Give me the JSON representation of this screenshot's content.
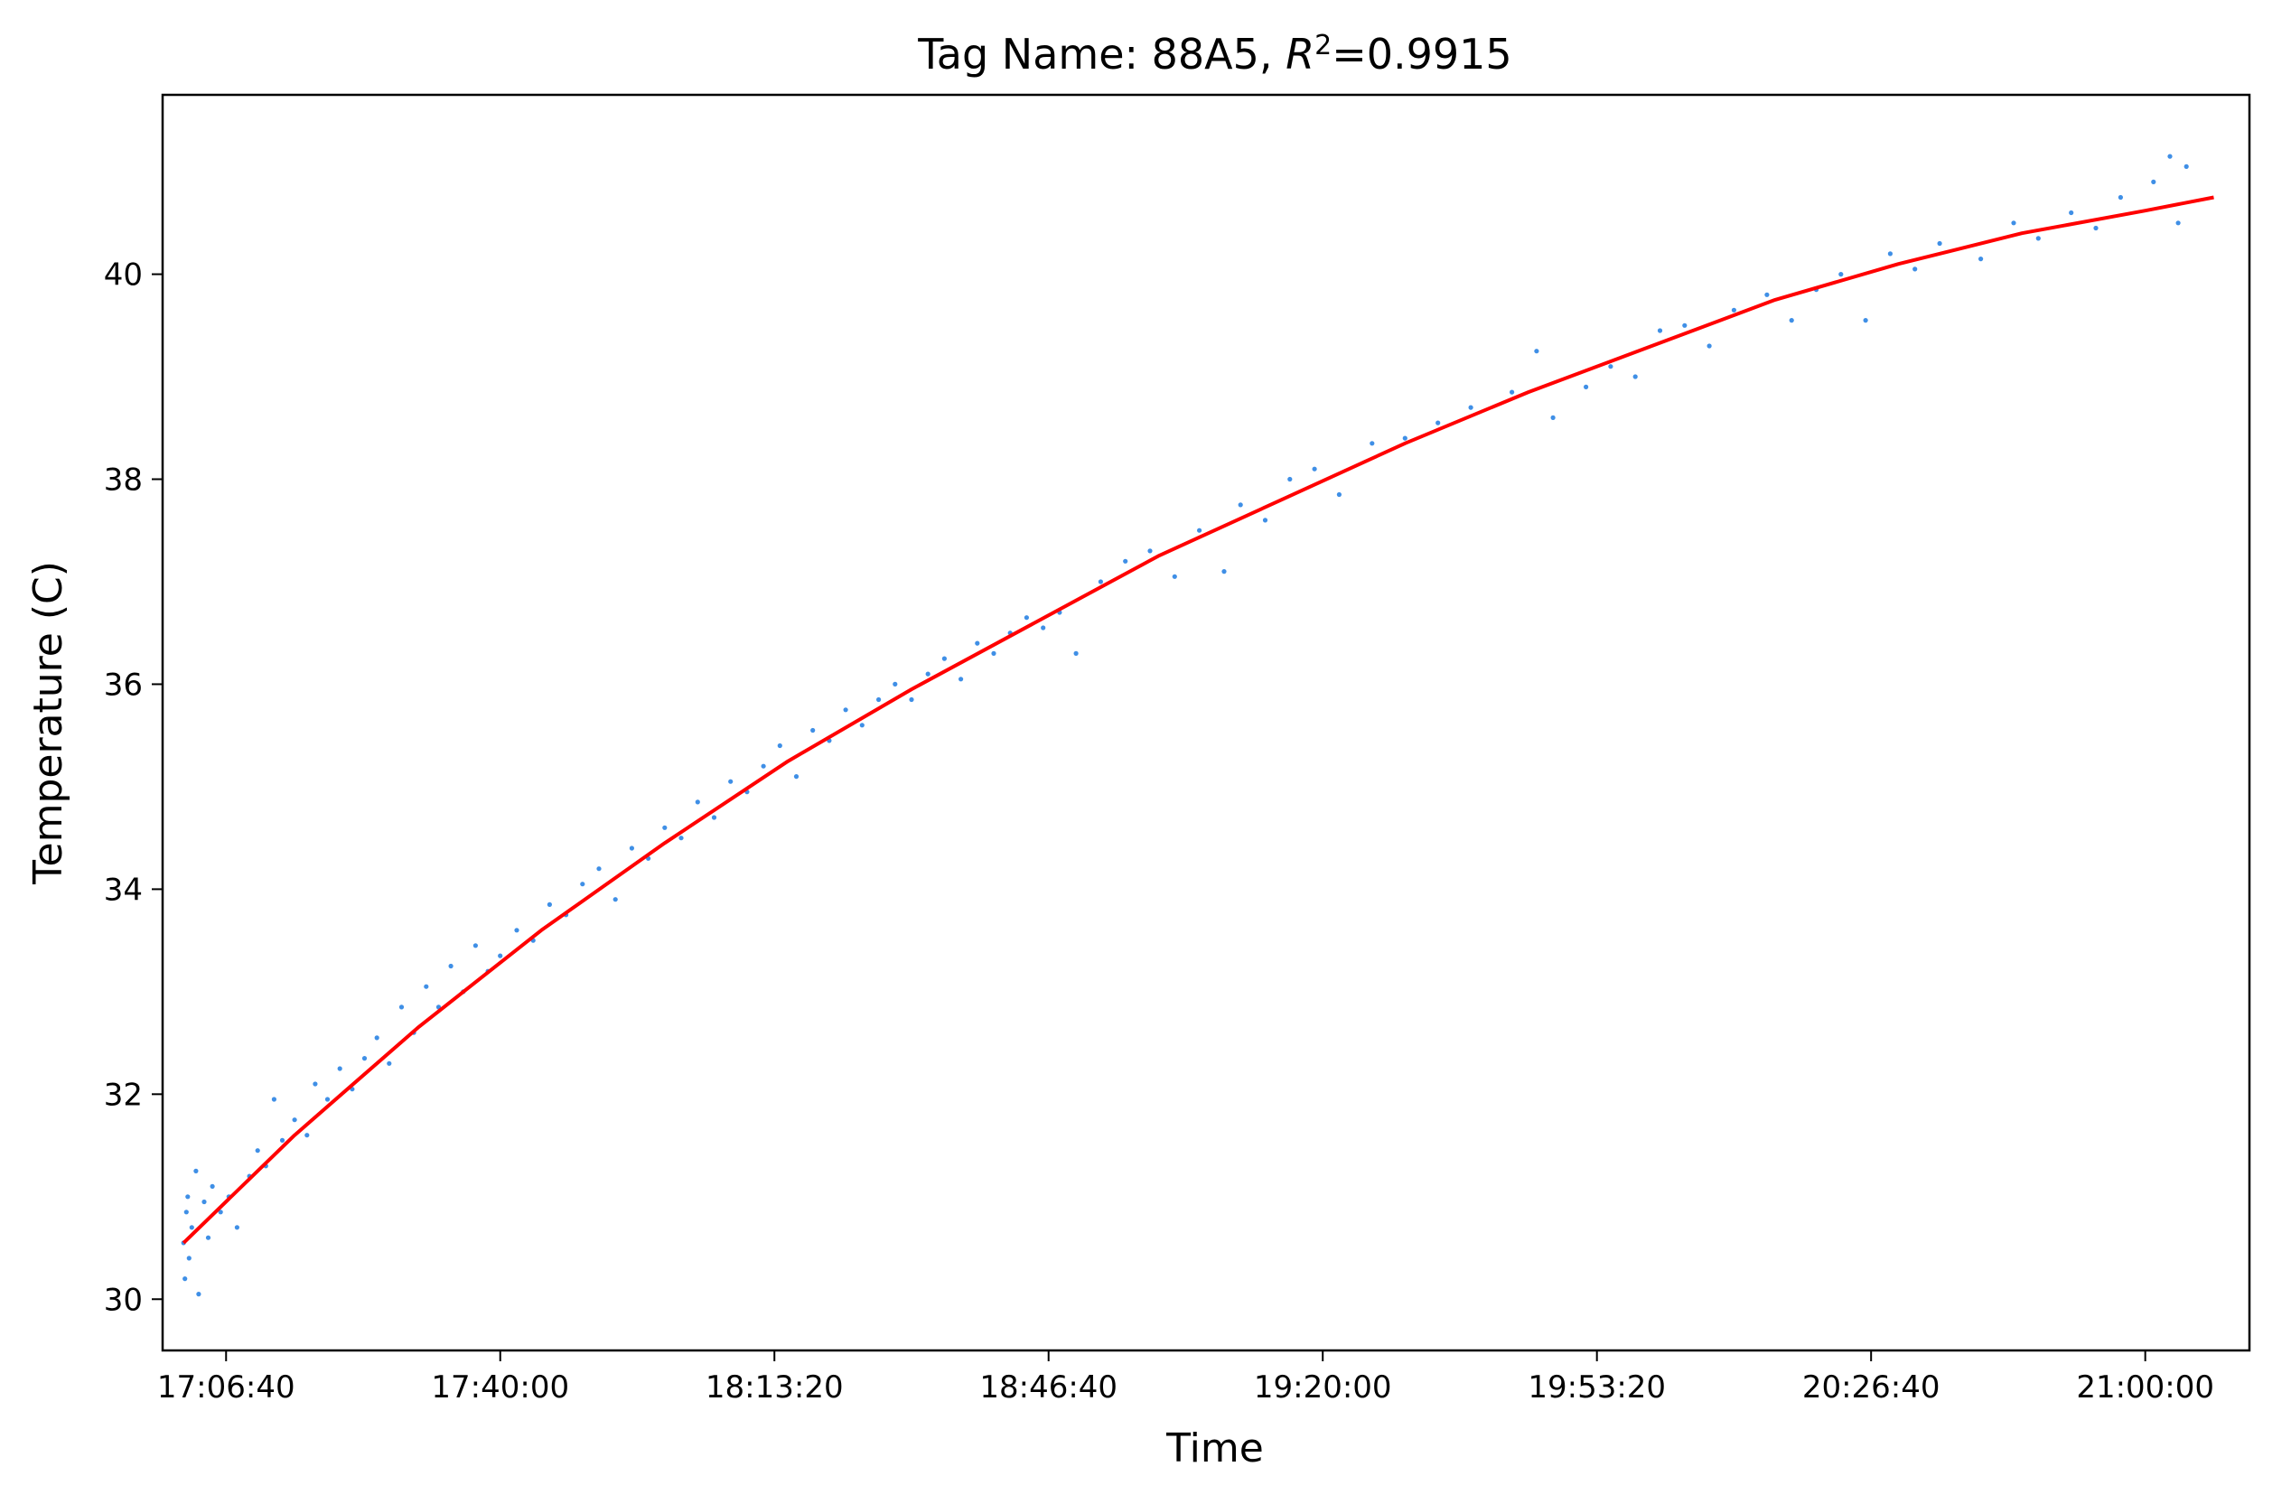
{
  "chart_data": {
    "type": "scatter",
    "title": "Tag Name: 88A5, R²=0.9915",
    "title_parts": {
      "prefix": "Tag Name: 88A5, ",
      "var": "R",
      "sup": "2",
      "suffix": "=0.9915"
    },
    "xlabel": "Time",
    "ylabel": "Temperature (C)",
    "x_range": [
      "16:58:57",
      "21:12:40"
    ],
    "xlim": [
      "16:58:57",
      "21:12:40"
    ],
    "ylim": [
      29.5,
      41.75
    ],
    "x_ticks": [
      "17:06:40",
      "17:40:00",
      "18:13:20",
      "18:46:40",
      "19:20:00",
      "19:53:20",
      "20:26:40",
      "21:00:00"
    ],
    "y_ticks": [
      30,
      32,
      34,
      36,
      38,
      40
    ],
    "grid": false,
    "legend": "none",
    "series": [
      {
        "kind": "scatter",
        "color": "#3f8fe6",
        "points": [
          [
            "17:01:30",
            30.55
          ],
          [
            "17:01:40",
            30.2
          ],
          [
            "17:01:50",
            30.85
          ],
          [
            "17:02:00",
            31.0
          ],
          [
            "17:02:10",
            30.4
          ],
          [
            "17:02:30",
            30.7
          ],
          [
            "17:03:00",
            31.25
          ],
          [
            "17:03:20",
            30.05
          ],
          [
            "17:04:00",
            30.95
          ],
          [
            "17:04:30",
            30.6
          ],
          [
            "17:05:00",
            31.1
          ],
          [
            "17:06:00",
            30.85
          ],
          [
            "17:07:00",
            31.0
          ],
          [
            "17:08:00",
            30.7
          ],
          [
            "17:09:30",
            31.2
          ],
          [
            "17:10:30",
            31.45
          ],
          [
            "17:11:30",
            31.3
          ],
          [
            "17:12:30",
            31.95
          ],
          [
            "17:13:30",
            31.55
          ],
          [
            "17:15:00",
            31.75
          ],
          [
            "17:16:30",
            31.6
          ],
          [
            "17:17:30",
            32.1
          ],
          [
            "17:19:00",
            31.95
          ],
          [
            "17:20:30",
            32.25
          ],
          [
            "17:22:00",
            32.05
          ],
          [
            "17:23:30",
            32.35
          ],
          [
            "17:25:00",
            32.55
          ],
          [
            "17:26:30",
            32.3
          ],
          [
            "17:28:00",
            32.85
          ],
          [
            "17:29:30",
            32.6
          ],
          [
            "17:31:00",
            33.05
          ],
          [
            "17:32:30",
            32.85
          ],
          [
            "17:34:00",
            33.25
          ],
          [
            "17:35:30",
            33.0
          ],
          [
            "17:37:00",
            33.45
          ],
          [
            "17:38:30",
            33.2
          ],
          [
            "17:40:00",
            33.35
          ],
          [
            "17:42:00",
            33.6
          ],
          [
            "17:44:00",
            33.5
          ],
          [
            "17:46:00",
            33.85
          ],
          [
            "17:48:00",
            33.75
          ],
          [
            "17:50:00",
            34.05
          ],
          [
            "17:52:00",
            34.2
          ],
          [
            "17:54:00",
            33.9
          ],
          [
            "17:56:00",
            34.4
          ],
          [
            "17:58:00",
            34.3
          ],
          [
            "18:00:00",
            34.6
          ],
          [
            "18:02:00",
            34.5
          ],
          [
            "18:04:00",
            34.85
          ],
          [
            "18:06:00",
            34.7
          ],
          [
            "18:08:00",
            35.05
          ],
          [
            "18:10:00",
            34.95
          ],
          [
            "18:12:00",
            35.2
          ],
          [
            "18:14:00",
            35.4
          ],
          [
            "18:16:00",
            35.1
          ],
          [
            "18:18:00",
            35.55
          ],
          [
            "18:20:00",
            35.45
          ],
          [
            "18:22:00",
            35.75
          ],
          [
            "18:24:00",
            35.6
          ],
          [
            "18:26:00",
            35.85
          ],
          [
            "18:28:00",
            36.0
          ],
          [
            "18:30:00",
            35.85
          ],
          [
            "18:32:00",
            36.1
          ],
          [
            "18:34:00",
            36.25
          ],
          [
            "18:36:00",
            36.05
          ],
          [
            "18:38:00",
            36.4
          ],
          [
            "18:40:00",
            36.3
          ],
          [
            "18:42:00",
            36.5
          ],
          [
            "18:44:00",
            36.65
          ],
          [
            "18:46:00",
            36.55
          ],
          [
            "18:48:00",
            36.7
          ],
          [
            "18:50:00",
            36.3
          ],
          [
            "18:53:00",
            37.0
          ],
          [
            "18:56:00",
            37.2
          ],
          [
            "18:59:00",
            37.3
          ],
          [
            "19:02:00",
            37.05
          ],
          [
            "19:05:00",
            37.5
          ],
          [
            "19:08:00",
            37.1
          ],
          [
            "19:10:00",
            37.75
          ],
          [
            "19:13:00",
            37.6
          ],
          [
            "19:16:00",
            38.0
          ],
          [
            "19:19:00",
            38.1
          ],
          [
            "19:22:00",
            37.85
          ],
          [
            "19:26:00",
            38.35
          ],
          [
            "19:30:00",
            38.4
          ],
          [
            "19:34:00",
            38.55
          ],
          [
            "19:38:00",
            38.7
          ],
          [
            "19:43:00",
            38.85
          ],
          [
            "19:46:00",
            39.25
          ],
          [
            "19:48:00",
            38.6
          ],
          [
            "19:52:00",
            38.9
          ],
          [
            "19:55:00",
            39.1
          ],
          [
            "19:58:00",
            39.0
          ],
          [
            "20:01:00",
            39.45
          ],
          [
            "20:04:00",
            39.5
          ],
          [
            "20:07:00",
            39.3
          ],
          [
            "20:10:00",
            39.65
          ],
          [
            "20:14:00",
            39.8
          ],
          [
            "20:17:00",
            39.55
          ],
          [
            "20:20:00",
            39.85
          ],
          [
            "20:23:00",
            40.0
          ],
          [
            "20:26:00",
            39.55
          ],
          [
            "20:29:00",
            40.2
          ],
          [
            "20:32:00",
            40.05
          ],
          [
            "20:35:00",
            40.3
          ],
          [
            "20:40:00",
            40.15
          ],
          [
            "20:44:00",
            40.5
          ],
          [
            "20:47:00",
            40.35
          ],
          [
            "20:51:00",
            40.6
          ],
          [
            "20:54:00",
            40.45
          ],
          [
            "20:57:00",
            40.75
          ],
          [
            "21:01:00",
            40.9
          ],
          [
            "21:03:00",
            41.15
          ],
          [
            "21:04:00",
            40.5
          ],
          [
            "21:05:00",
            41.05
          ]
        ]
      },
      {
        "kind": "line",
        "color": "#ff0000",
        "x": [
          "17:01:30",
          "17:15:00",
          "17:30:00",
          "17:45:00",
          "18:00:00",
          "18:15:00",
          "18:30:00",
          "18:45:00",
          "19:00:00",
          "19:15:00",
          "19:30:00",
          "19:45:00",
          "20:00:00",
          "20:15:00",
          "20:30:00",
          "20:45:00",
          "21:00:00",
          "21:08:20"
        ],
        "y": [
          30.55,
          31.6,
          32.65,
          33.6,
          34.45,
          35.25,
          35.95,
          36.6,
          37.25,
          37.8,
          38.35,
          38.85,
          39.3,
          39.75,
          40.1,
          40.4,
          40.62,
          40.75
        ]
      }
    ]
  }
}
